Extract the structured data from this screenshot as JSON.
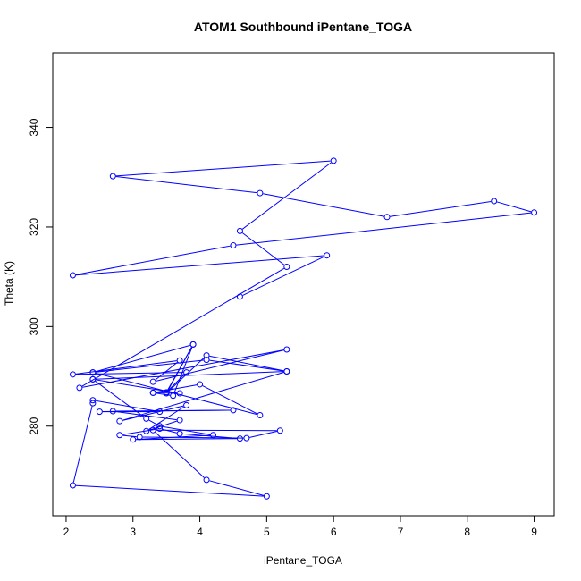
{
  "chart_data": {
    "type": "line",
    "title": "ATOM1 Southbound iPentane_TOGA",
    "xlabel": "iPentane_TOGA",
    "ylabel": "Theta (K)",
    "xlim": [
      1.8,
      9.3
    ],
    "ylim": [
      262,
      355
    ],
    "xticks": [
      2,
      3,
      4,
      5,
      6,
      7,
      8,
      9
    ],
    "yticks": [
      280,
      300,
      320,
      340
    ],
    "grid": false,
    "marker": "open-circle",
    "series": [
      {
        "color": "#0000ff",
        "points": [
          [
            4.6,
            306.0
          ],
          [
            5.9,
            314.3
          ],
          [
            2.1,
            310.3
          ],
          [
            4.5,
            316.3
          ],
          [
            9.0,
            322.9
          ],
          [
            8.4,
            325.2
          ],
          [
            6.8,
            322.0
          ],
          [
            4.9,
            326.8
          ],
          [
            2.7,
            330.2
          ],
          [
            6.0,
            333.3
          ],
          [
            4.6,
            319.2
          ],
          [
            5.3,
            312.0
          ],
          [
            2.2,
            287.7
          ],
          [
            5.3,
            295.4
          ],
          [
            3.3,
            288.9
          ],
          [
            3.7,
            293.2
          ],
          [
            2.1,
            290.4
          ],
          [
            3.8,
            290.8
          ],
          [
            3.5,
            286.8
          ],
          [
            3.9,
            296.4
          ],
          [
            3.5,
            286.6
          ],
          [
            4.1,
            294.2
          ],
          [
            5.3,
            291.0
          ],
          [
            4.1,
            293.3
          ],
          [
            2.4,
            290.8
          ],
          [
            4.9,
            282.2
          ],
          [
            4.0,
            288.4
          ],
          [
            3.3,
            286.7
          ],
          [
            3.7,
            286.6
          ],
          [
            2.4,
            289.4
          ],
          [
            5.3,
            291.0
          ],
          [
            2.8,
            281.0
          ],
          [
            3.8,
            284.2
          ],
          [
            3.2,
            279.0
          ],
          [
            3.7,
            281.2
          ],
          [
            2.7,
            283.0
          ],
          [
            4.5,
            283.2
          ],
          [
            2.5,
            282.9
          ],
          [
            3.4,
            282.9
          ],
          [
            2.4,
            285.2
          ],
          [
            2.4,
            284.6
          ],
          [
            2.1,
            268.1
          ],
          [
            5.0,
            265.9
          ],
          [
            4.1,
            269.2
          ],
          [
            3.3,
            279.2
          ],
          [
            5.2,
            279.1
          ],
          [
            4.7,
            277.6
          ],
          [
            3.1,
            277.8
          ],
          [
            2.8,
            278.2
          ],
          [
            3.4,
            279.5
          ],
          [
            3.7,
            278.5
          ],
          [
            4.6,
            277.5
          ],
          [
            3.0,
            277.3
          ],
          [
            4.2,
            278.2
          ],
          [
            3.4,
            280.0
          ],
          [
            3.2,
            281.5
          ],
          [
            2.4,
            289.4
          ],
          [
            2.4,
            290.8
          ],
          [
            3.9,
            296.4
          ],
          [
            3.6,
            286.1
          ],
          [
            3.3,
            286.7
          ]
        ]
      }
    ]
  }
}
